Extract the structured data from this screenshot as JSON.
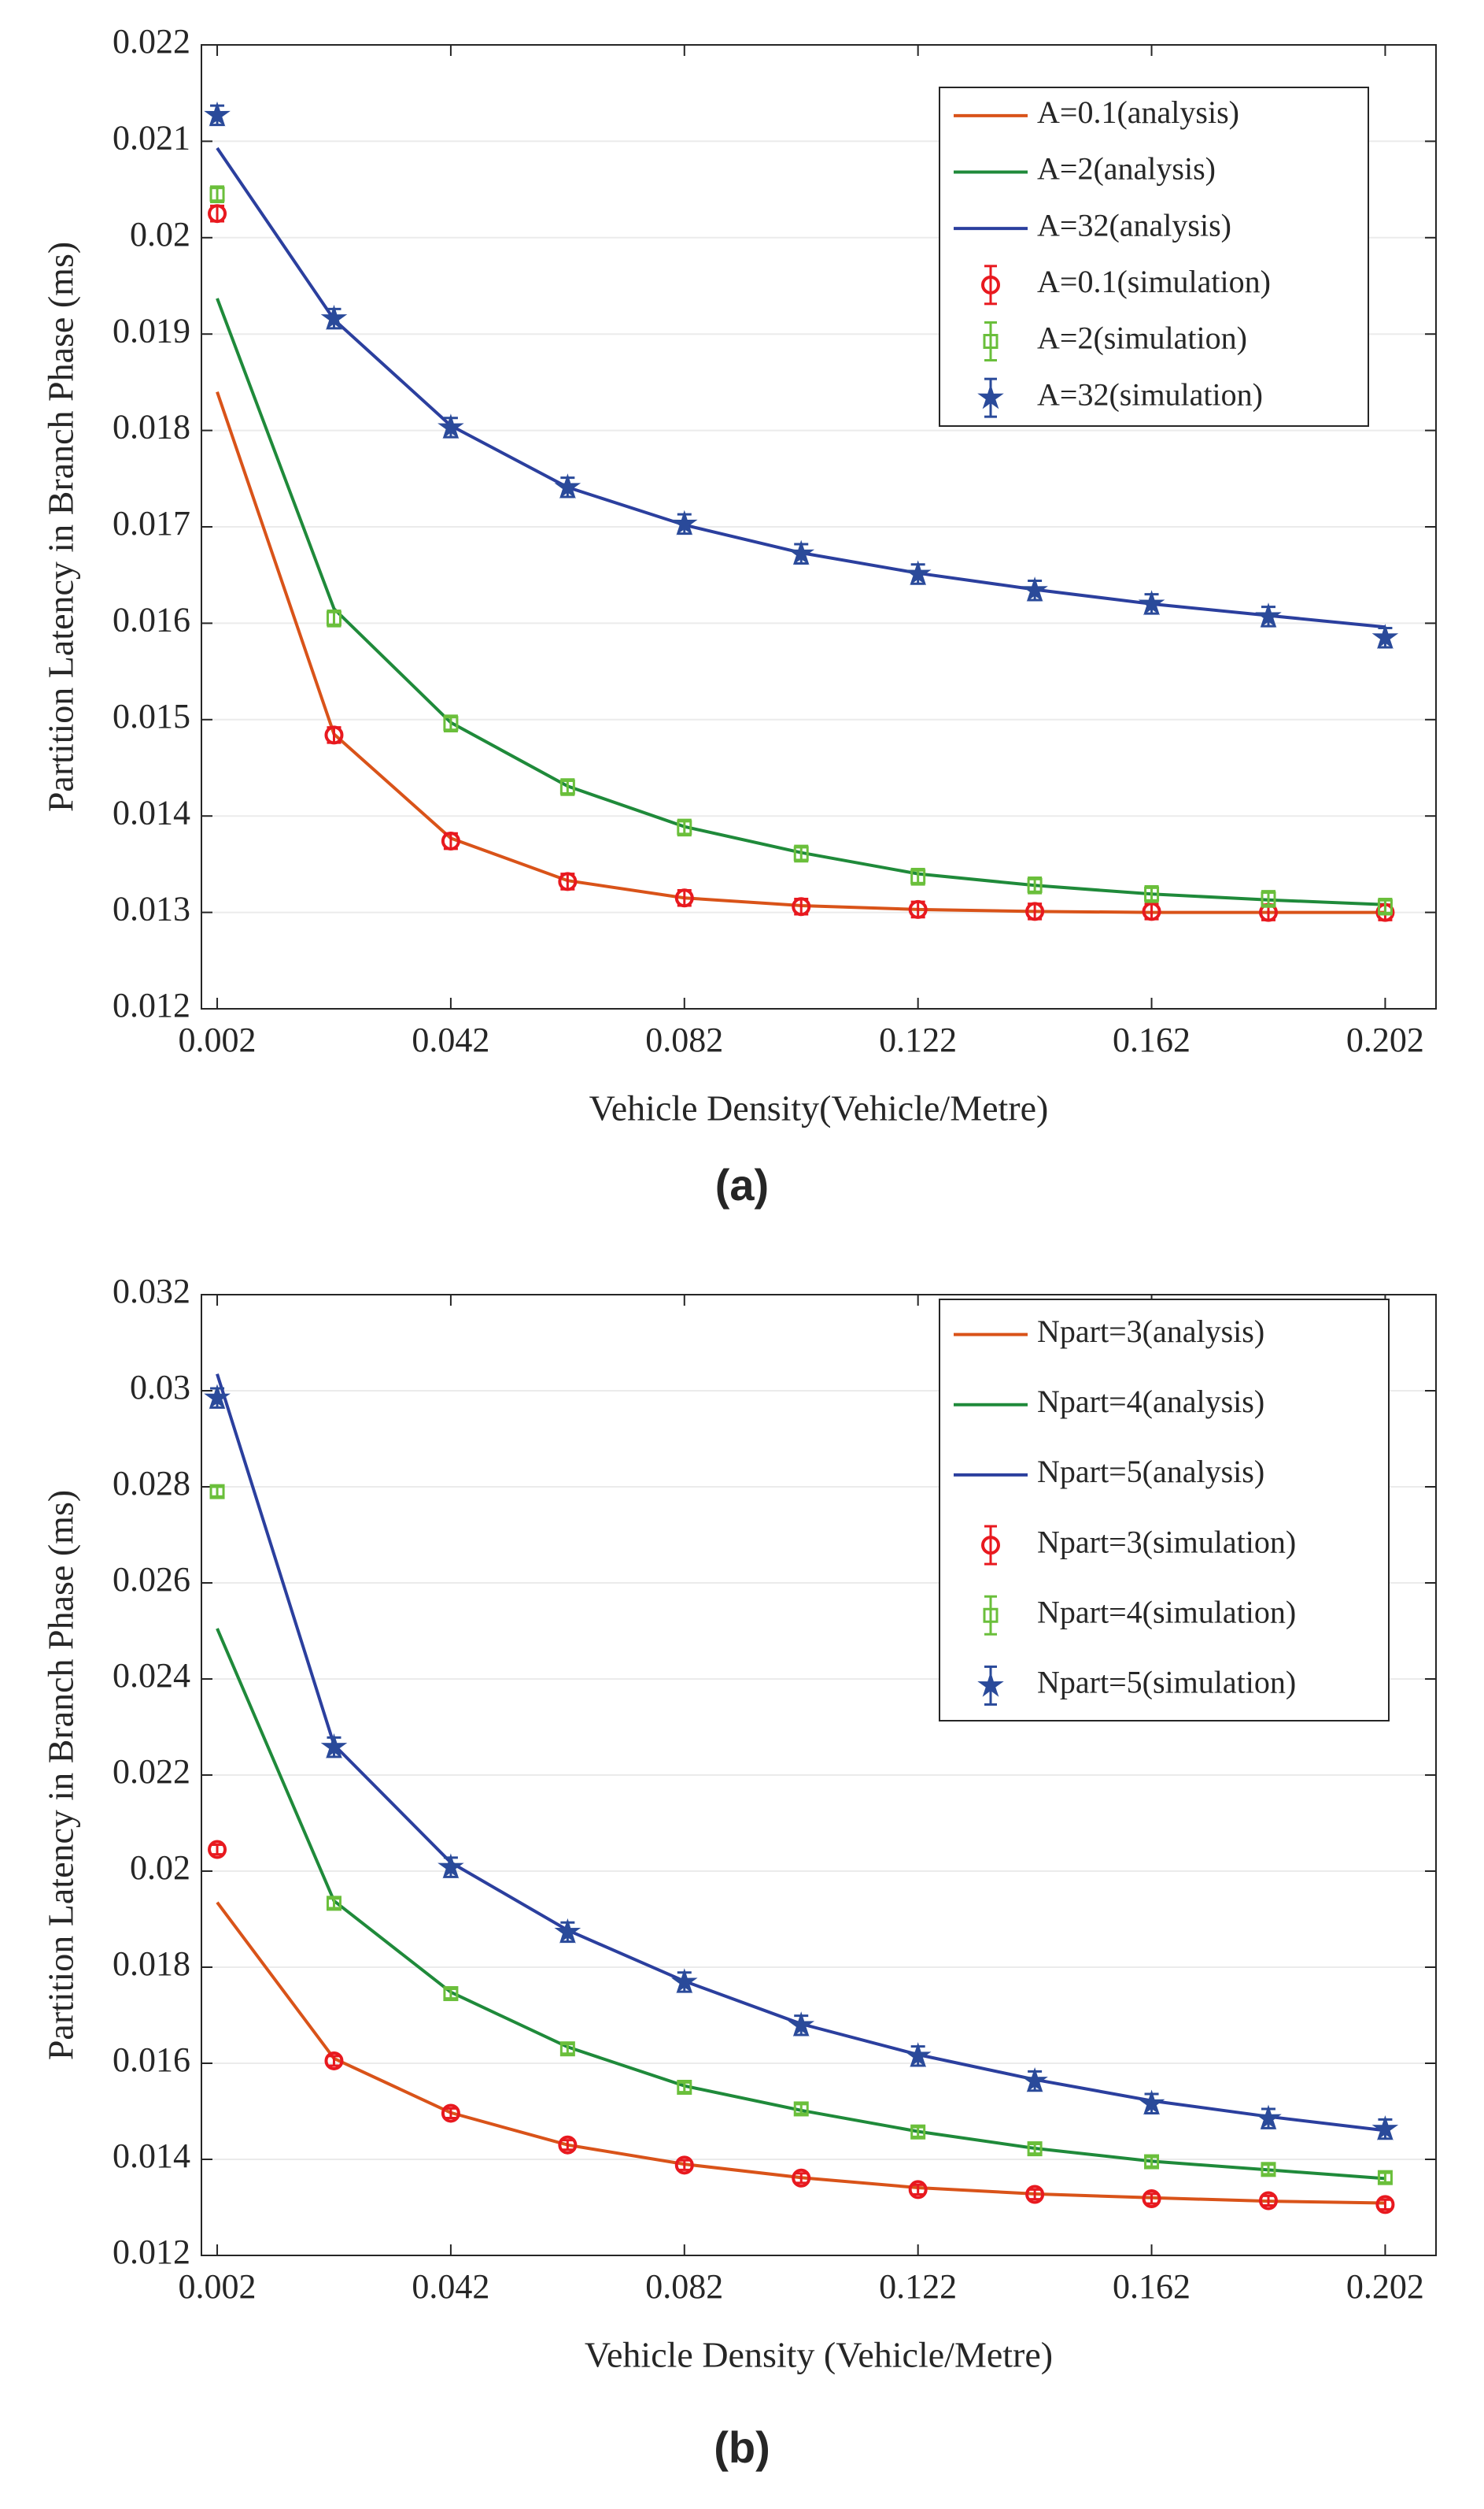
{
  "chart_data": [
    {
      "type": "line",
      "caption": "(a)",
      "xlabel": "Vehicle Density(Vehicle/Metre)",
      "ylabel": "Partition Latency in Branch Phase (ms)",
      "x": [
        0.002,
        0.022,
        0.042,
        0.062,
        0.082,
        0.102,
        0.122,
        0.142,
        0.162,
        0.182,
        0.202
      ],
      "xlim": [
        -0.0007,
        0.2107
      ],
      "xticks": [
        0.002,
        0.042,
        0.082,
        0.122,
        0.162,
        0.202
      ],
      "ylim": [
        0.012,
        0.022
      ],
      "yticks": [
        0.012,
        0.013,
        0.014,
        0.015,
        0.016,
        0.017,
        0.018,
        0.019,
        0.02,
        0.021,
        0.022
      ],
      "grid": "y",
      "legend": "upper right",
      "series": [
        {
          "name": "A=0.1(analysis)",
          "kind": "line",
          "color": "#d95319",
          "values": [
            0.0184,
            0.01485,
            0.01377,
            0.01333,
            0.01315,
            0.01307,
            0.01303,
            0.01301,
            0.013,
            0.013,
            0.013
          ]
        },
        {
          "name": "A=2(analysis)",
          "kind": "line",
          "color": "#1f8a3a",
          "values": [
            0.01937,
            0.01615,
            0.01497,
            0.01431,
            0.01389,
            0.01362,
            0.0134,
            0.01328,
            0.01319,
            0.01313,
            0.01308
          ]
        },
        {
          "name": "A=32(analysis)",
          "kind": "line",
          "color": "#2b3f9e",
          "values": [
            0.02093,
            0.01915,
            0.01805,
            0.01741,
            0.01702,
            0.01673,
            0.01652,
            0.01635,
            0.0162,
            0.01608,
            0.01596
          ]
        },
        {
          "name": "A=0.1(simulation)",
          "kind": "errorbar",
          "marker": "circle",
          "color": "#e8191f",
          "error": 8e-05,
          "values": [
            0.02025,
            0.01484,
            0.01374,
            0.01332,
            0.01315,
            0.01306,
            0.01303,
            0.01301,
            0.01301,
            0.013,
            0.013
          ]
        },
        {
          "name": "A=2(simulation)",
          "kind": "errorbar",
          "marker": "square",
          "color": "#6abf3b",
          "error": 8e-05,
          "values": [
            0.02045,
            0.01605,
            0.01496,
            0.0143,
            0.01388,
            0.01361,
            0.01337,
            0.01328,
            0.01319,
            0.01314,
            0.01306
          ]
        },
        {
          "name": "A=32(simulation)",
          "kind": "errorbar",
          "marker": "star",
          "color": "#2a4a9a",
          "error": 0.0001,
          "values": [
            0.02127,
            0.01916,
            0.01803,
            0.01741,
            0.01703,
            0.01672,
            0.01651,
            0.01634,
            0.0162,
            0.01607,
            0.01585
          ]
        }
      ]
    },
    {
      "type": "line",
      "caption": "(b)",
      "xlabel": "Vehicle Density (Vehicle/Metre)",
      "ylabel": "Partition Latency in Branch Phase (ms)",
      "x": [
        0.002,
        0.022,
        0.042,
        0.062,
        0.082,
        0.102,
        0.122,
        0.142,
        0.162,
        0.182,
        0.202
      ],
      "xlim": [
        -0.0007,
        0.2107
      ],
      "xticks": [
        0.002,
        0.042,
        0.082,
        0.122,
        0.162,
        0.202
      ],
      "ylim": [
        0.012,
        0.032
      ],
      "yticks": [
        0.012,
        0.014,
        0.016,
        0.018,
        0.02,
        0.022,
        0.024,
        0.026,
        0.028,
        0.03,
        0.032
      ],
      "grid": "y",
      "legend": "upper right",
      "series": [
        {
          "name": "Npart=3(analysis)",
          "kind": "line",
          "color": "#d95319",
          "values": [
            0.01935,
            0.0161,
            0.01497,
            0.0143,
            0.0139,
            0.01362,
            0.01341,
            0.01328,
            0.0132,
            0.01313,
            0.01309
          ]
        },
        {
          "name": "Npart=4(analysis)",
          "kind": "line",
          "color": "#1f8a3a",
          "values": [
            0.02505,
            0.01938,
            0.01748,
            0.01634,
            0.01553,
            0.01502,
            0.01458,
            0.01423,
            0.01396,
            0.01378,
            0.0136
          ]
        },
        {
          "name": "Npart=5(analysis)",
          "kind": "line",
          "color": "#2b3f9e",
          "values": [
            0.03035,
            0.02263,
            0.02018,
            0.01877,
            0.01771,
            0.01682,
            0.01618,
            0.01566,
            0.01522,
            0.01489,
            0.0146
          ]
        },
        {
          "name": "Npart=3(simulation)",
          "kind": "errorbar",
          "marker": "circle",
          "color": "#e8191f",
          "error": 0.0001,
          "values": [
            0.02045,
            0.01605,
            0.01496,
            0.0143,
            0.01388,
            0.01361,
            0.01337,
            0.01327,
            0.01318,
            0.01314,
            0.01306
          ]
        },
        {
          "name": "Npart=4(simulation)",
          "kind": "errorbar",
          "marker": "square",
          "color": "#6abf3b",
          "error": 0.0001,
          "values": [
            0.0279,
            0.01933,
            0.01745,
            0.0163,
            0.0155,
            0.01505,
            0.01457,
            0.01422,
            0.01395,
            0.01379,
            0.01362
          ]
        },
        {
          "name": "Npart=5(simulation)",
          "kind": "errorbar",
          "marker": "star",
          "color": "#2a4a9a",
          "error": 0.0002,
          "values": [
            0.02985,
            0.02258,
            0.02008,
            0.01873,
            0.01769,
            0.01679,
            0.01615,
            0.01563,
            0.01516,
            0.01485,
            0.01463
          ]
        }
      ]
    }
  ]
}
